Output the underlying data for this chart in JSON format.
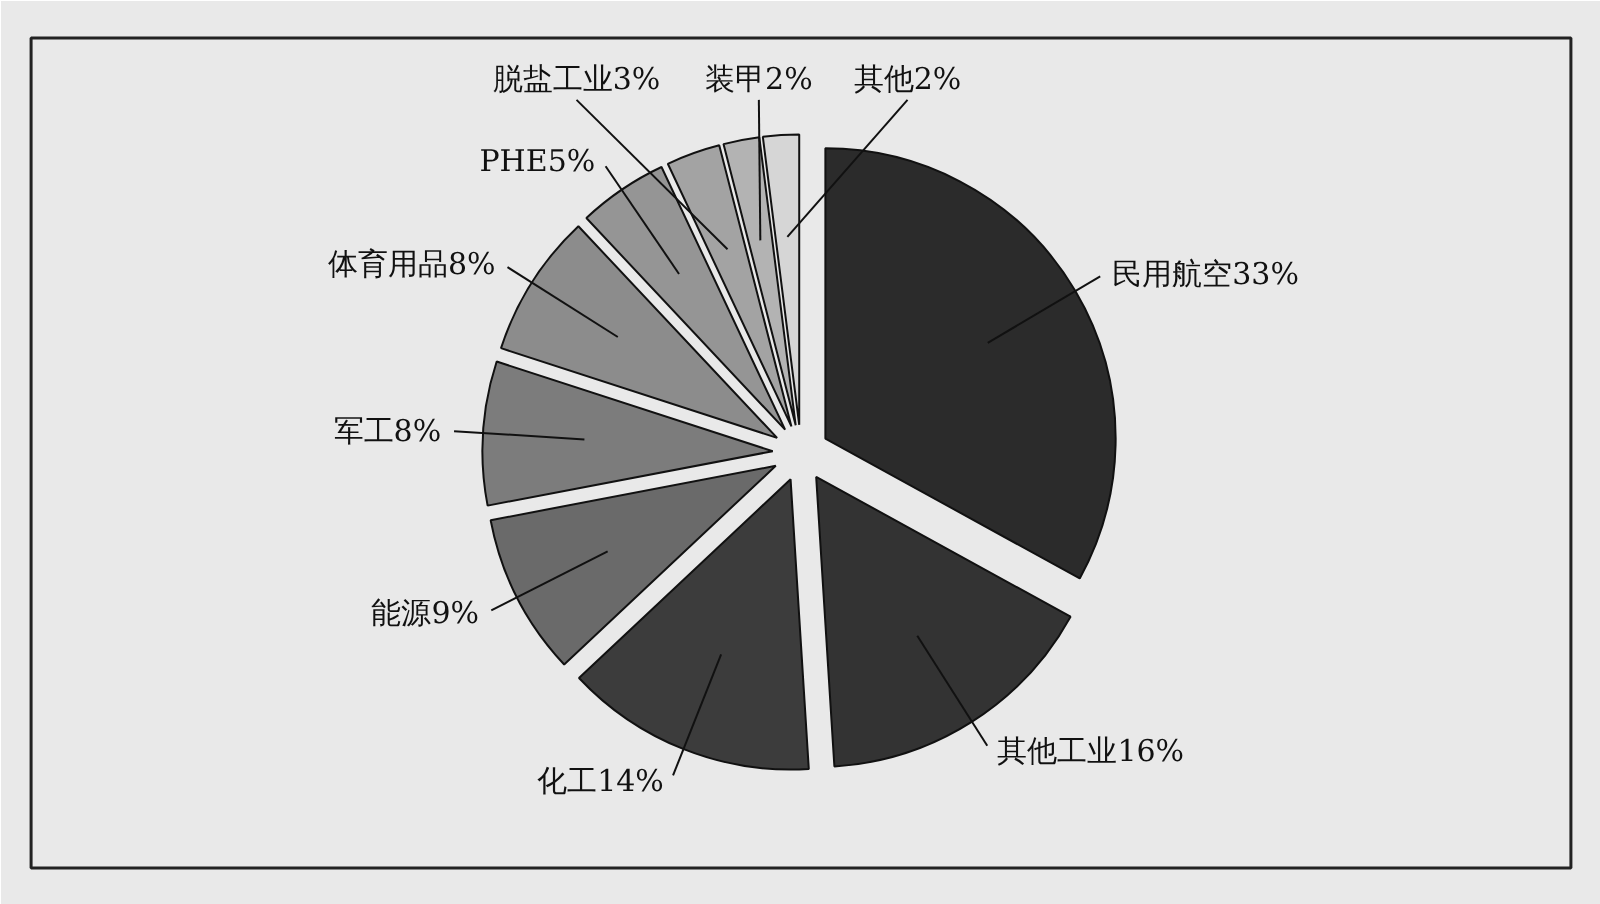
{
  "chart_data": {
    "type": "pie",
    "categories": [
      "民用航空",
      "其他工业",
      "化工",
      "能源",
      "军工",
      "体育用品",
      "PHE",
      "脱盐工业",
      "装甲",
      "其他"
    ],
    "values": [
      33,
      16,
      14,
      9,
      8,
      8,
      5,
      3,
      2,
      2
    ],
    "value_labels": [
      "33%",
      "16%",
      "14%",
      "9%",
      "8%",
      "8%",
      "5%",
      "3%",
      "2%",
      "2%"
    ],
    "colors": [
      "#2b2b2b",
      "#333333",
      "#3c3c3c",
      "#6a6a6a",
      "#7c7c7c",
      "#8c8c8c",
      "#959595",
      "#a3a3a3",
      "#b3b3b3",
      "#d6d6d6"
    ]
  }
}
